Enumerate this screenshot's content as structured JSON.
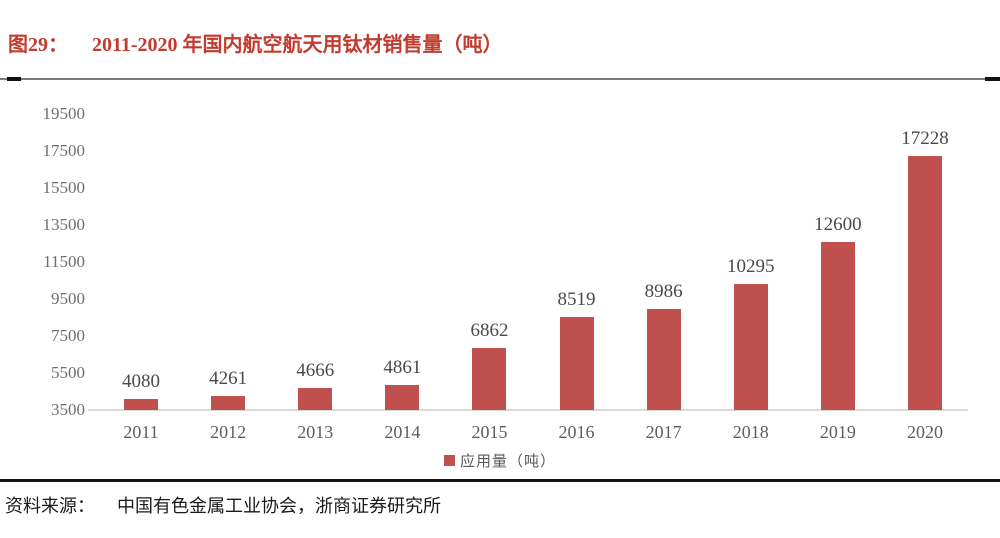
{
  "figure": {
    "label": "图29：",
    "title": "2011-2020 年国内航空航天用钛材销售量（吨）"
  },
  "chart_data": {
    "type": "bar",
    "title": "2011-2020 年国内航空航天用钛材销售量（吨）",
    "categories": [
      "2011",
      "2012",
      "2013",
      "2014",
      "2015",
      "2016",
      "2017",
      "2018",
      "2019",
      "2020"
    ],
    "values": [
      4080,
      4261,
      4666,
      4861,
      6862,
      8519,
      8986,
      10295,
      12600,
      17228
    ],
    "legend": "应用量（吨）",
    "legend_position": "bottom",
    "ylim": [
      3500,
      19500
    ],
    "ytick_step": 2000,
    "yticks": [
      3500,
      5500,
      7500,
      9500,
      11500,
      13500,
      15500,
      17500,
      19500
    ],
    "grid": false,
    "data_labels": true
  },
  "colors": {
    "title_red": "#C23B2E",
    "bar_red": "#C0504D",
    "axis_text": "#6E6E70",
    "value_text": "#4A4A4A",
    "baseline_gray": "#D9D9D9"
  },
  "source": {
    "prefix": "资料来源：",
    "text": "中国有色金属工业协会，浙商证券研究所"
  }
}
